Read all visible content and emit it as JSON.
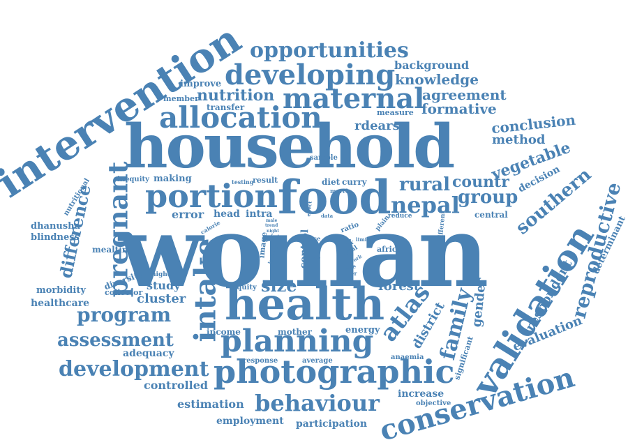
{
  "color": "#4a82b4",
  "words": {
    "woman": "woman",
    "household": "household",
    "intervention": "intervention",
    "food": "food",
    "health": "health",
    "photographic": "photographic",
    "validation": "validation",
    "portion": "portion",
    "allocation": "allocation",
    "developing": "developing",
    "maternal": "maternal",
    "planning": "planning",
    "intake": "intake",
    "pregnant": "pregnant",
    "conservation": "conservation",
    "opportunities": "opportunities",
    "behaviour": "behaviour",
    "development": "development",
    "nepal": "nepal",
    "group": "group",
    "atlas": "atlas",
    "reproductive": "reproductive",
    "program": "program",
    "assessment": "assessment",
    "difference": "difference",
    "southern": "southern",
    "rural": "rural",
    "countr": "countr",
    "family": "family",
    "nutrition": "nutrition",
    "knowledge": "knowledge",
    "background": "background",
    "agreement": "agreement",
    "formative": "formative",
    "conclusion": "conclusion",
    "method": "method",
    "vegetable": "vegetable",
    "rdears": "rdears",
    "improve": "improve",
    "member": "member",
    "transfer": "transfer",
    "measure": "measure",
    "sample": "sample",
    "decision": "decision",
    "respondent": "respondent",
    "evaluation": "evaluation",
    "determinant": "determinant",
    "gender": "gender",
    "district": "district",
    "significant": "significant",
    "forest": "forest",
    "size": "size",
    "cluster": "cluster",
    "study": "study",
    "collector": "collector",
    "diversity": "diversity",
    "higher": "higher",
    "mealtime": "mealtime",
    "morbidity": "morbidity",
    "healthcare": "healthcare",
    "dhanusha": "dhanusha",
    "blindness": "blindness",
    "nutritional": "nutritional",
    "error": "error",
    "head": "head",
    "intra": "intra",
    "inequity": "inequity",
    "making": "making",
    "testing": "testing",
    "result": "result",
    "diet": "diet",
    "curry": "curry",
    "march": "march",
    "central": "central",
    "reduce": "reduce",
    "plain": "plain",
    "different": "different",
    "africa": "africa",
    "equity": "equity",
    "income": "income",
    "mother": "mother",
    "energy": "energy",
    "response": "response",
    "average": "average",
    "anaemia": "anaemia",
    "adequacy": "adequacy",
    "controlled": "controlled",
    "estimation": "estimation",
    "employment": "employment",
    "participation": "participation",
    "increase": "increase",
    "objective": "objective",
    "control": "control",
    "image": "image",
    "impact": "impact",
    "calorie": "calorie",
    "ratio": "ratio",
    "risk": "risk",
    "trial": "trial",
    "limit": "limit",
    "work": "work",
    "more": "more",
    "lower": "lower",
    "rice": "rice",
    "rate": "rate",
    "effect": "effect",
    "data": "data",
    "male": "male",
    "trend": "trend",
    "night": "night",
    "forty": "forty"
  }
}
